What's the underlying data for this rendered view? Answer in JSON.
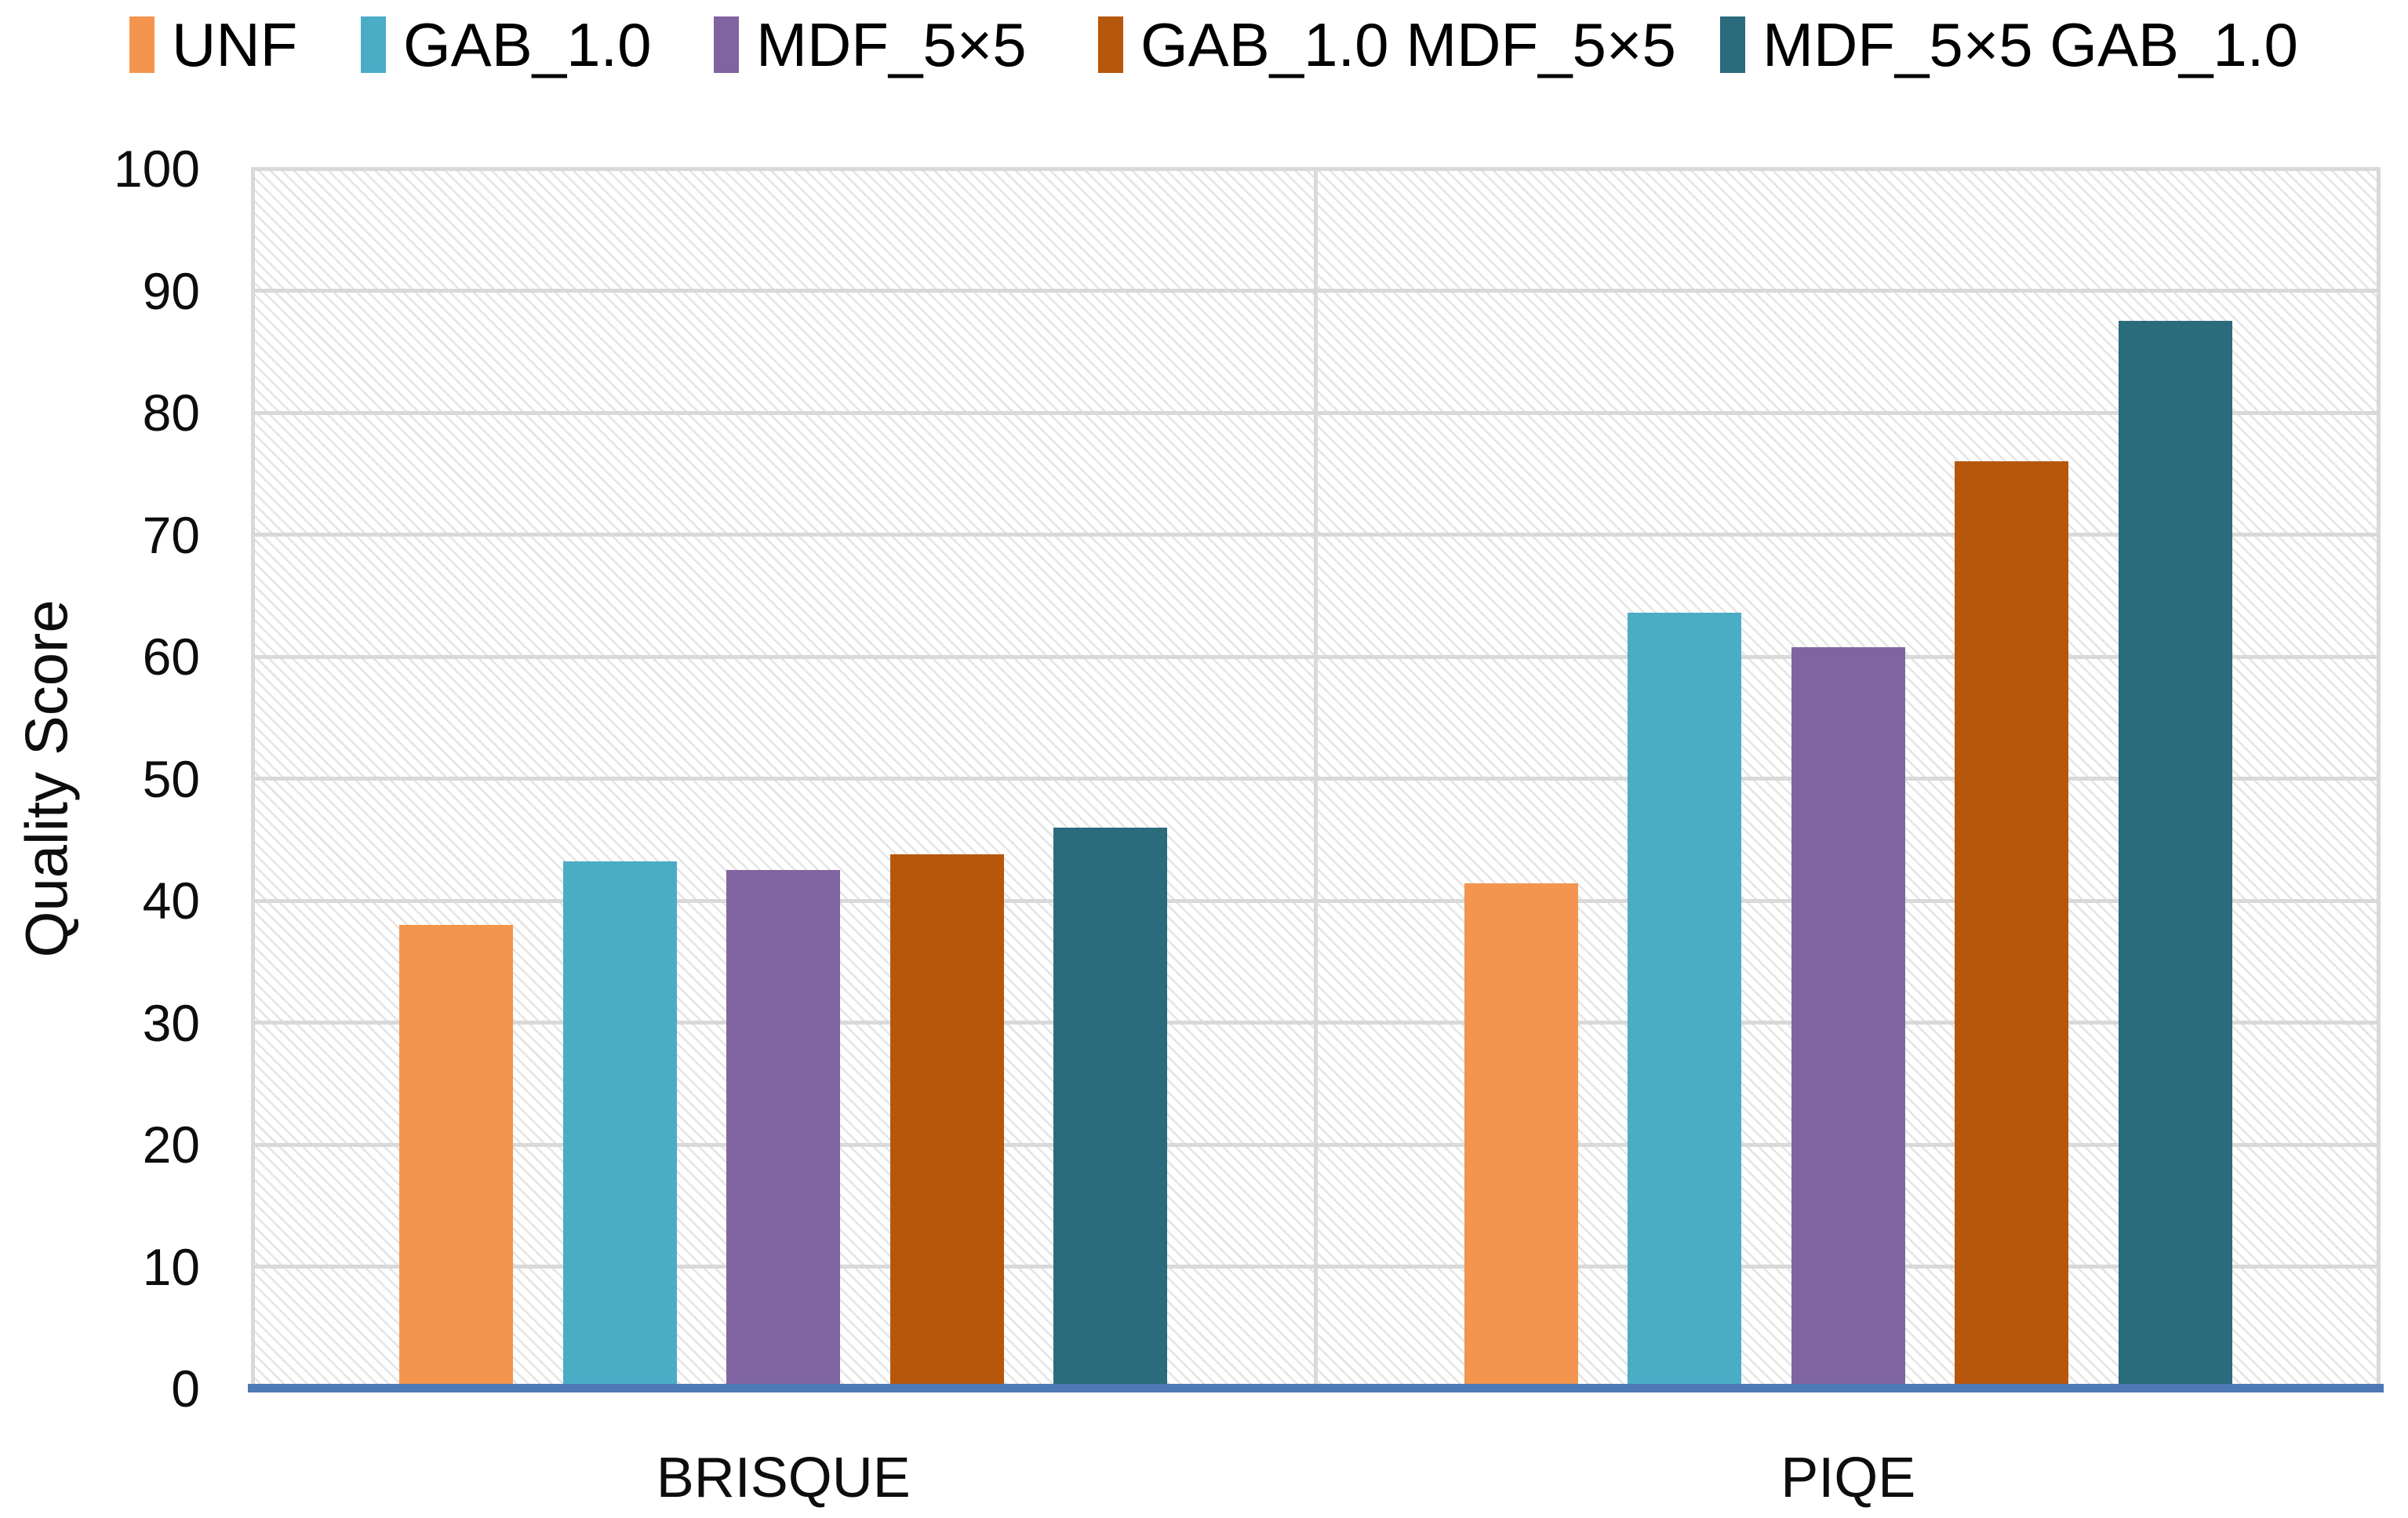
{
  "chart_data": {
    "type": "bar",
    "title": "",
    "xlabel": "",
    "ylabel": "Quality Score",
    "categories": [
      "BRISQUE",
      "PIQE"
    ],
    "series": [
      {
        "name": "UNF",
        "color": "#F3954E",
        "values": [
          38.0,
          41.4
        ]
      },
      {
        "name": "GAB_1.0",
        "color": "#4BACC6",
        "values": [
          43.2,
          63.6
        ]
      },
      {
        "name": "MDF_5×5",
        "color": "#8064A2",
        "values": [
          42.5,
          60.8
        ]
      },
      {
        "name": "GAB_1.0 MDF_5×5",
        "color": "#B7570B",
        "values": [
          43.8,
          76.0
        ]
      },
      {
        "name": "MDF_5×5 GAB_1.0",
        "color": "#2A6B7C",
        "values": [
          46.0,
          87.5
        ]
      }
    ],
    "ylim": [
      0,
      100
    ],
    "yticks": [
      0,
      10,
      20,
      30,
      40,
      50,
      60,
      70,
      80,
      90,
      100
    ],
    "grid": true,
    "legend_position": "top",
    "plot_background": "diagonal-hatch",
    "gridline_color": "#D9D9D9",
    "axis_line_color": "#4D79B6"
  }
}
